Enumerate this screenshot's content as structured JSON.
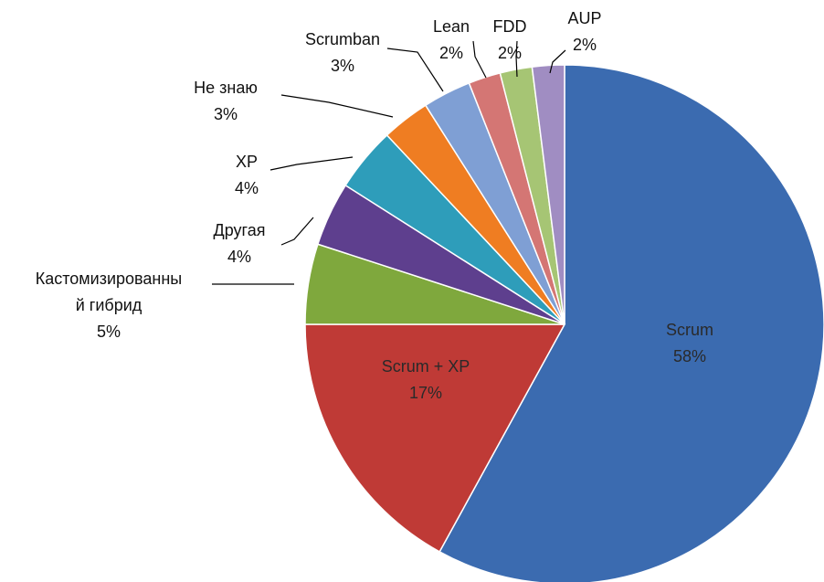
{
  "chart_data": {
    "type": "pie",
    "slices": [
      {
        "label": "Scrum",
        "value": 58,
        "value_label": "58%",
        "color": "#3B6BB0",
        "label_color": "#2a2a2a"
      },
      {
        "label": "Scrum + XP",
        "value": 17,
        "value_label": "17%",
        "color": "#BF3A36",
        "label_color": "#2a2a2a"
      },
      {
        "label": "Кастомизированны\nй гибрид",
        "value": 5,
        "value_label": "5%",
        "color": "#7FA83D",
        "label_color": "#111111"
      },
      {
        "label": "Другая",
        "value": 4,
        "value_label": "4%",
        "color": "#5E3F8E",
        "label_color": "#111111"
      },
      {
        "label": "XP",
        "value": 4,
        "value_label": "4%",
        "color": "#2E9DBA",
        "label_color": "#111111"
      },
      {
        "label": "Не знаю",
        "value": 3,
        "value_label": "3%",
        "color": "#EF7D22",
        "label_color": "#111111"
      },
      {
        "label": "Scrumban",
        "value": 3,
        "value_label": "3%",
        "color": "#7F9FD4",
        "label_color": "#111111"
      },
      {
        "label": "Lean",
        "value": 2,
        "value_label": "2%",
        "color": "#D47674",
        "label_color": "#111111"
      },
      {
        "label": "FDD",
        "value": 2,
        "value_label": "2%",
        "color": "#A6C574",
        "label_color": "#111111"
      },
      {
        "label": "AUP",
        "value": 2,
        "value_label": "2%",
        "color": "#A08DC2",
        "label_color": "#111111"
      }
    ],
    "start_angle_deg": 0,
    "direction": "clockwise",
    "legend": "none"
  }
}
